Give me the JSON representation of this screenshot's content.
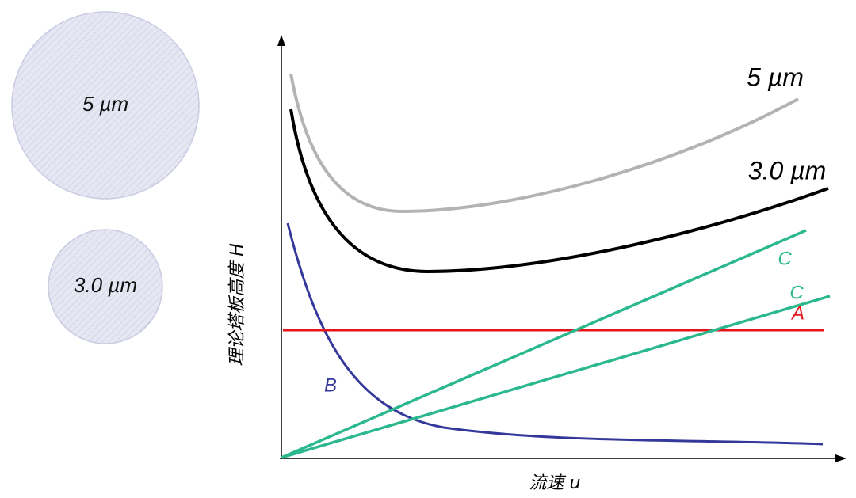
{
  "particles": [
    {
      "label": "5 µm"
    },
    {
      "label": "3.0 µm"
    }
  ],
  "curves": {
    "large": "5 µm",
    "small": "3.0 µm",
    "c1": "C",
    "c2": "C",
    "a": "A",
    "b": "B"
  },
  "axes": {
    "y_label": "理论塔板高度 H",
    "x_label": "流速 u"
  }
}
